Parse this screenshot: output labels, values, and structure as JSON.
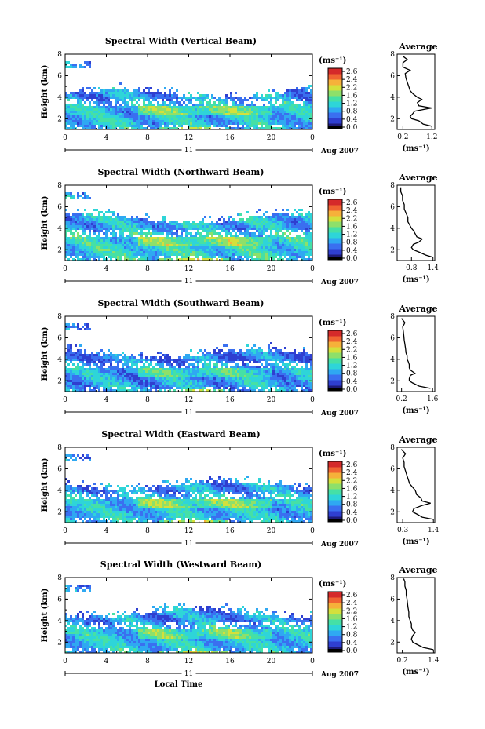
{
  "chart_data": [
    {
      "type": "heatmap",
      "title": "Spectral Width (Vertical Beam)",
      "ylabel": "Height (km)",
      "xticks": [
        "0",
        "4",
        "8",
        "12",
        "16",
        "20",
        "0"
      ],
      "yticks": [
        "2",
        "4",
        "6",
        "8"
      ],
      "xlim": [
        0,
        24
      ],
      "ylim": [
        1,
        8
      ],
      "date_day": "11",
      "date_label": "Aug 2007",
      "colorbar": {
        "unit": "(ms⁻¹)",
        "ticks": [
          "2.6",
          "2.4",
          "2.2",
          "1.6",
          "1.2",
          "0.8",
          "0.4",
          "0.0"
        ]
      },
      "profile": {
        "title": "Average",
        "xlabel": "(ms⁻¹)",
        "xticks": [
          "0.2",
          "1.2"
        ],
        "xlim": [
          0.0,
          1.3
        ],
        "yticks": [
          "2",
          "4",
          "6",
          "8"
        ],
        "height_km": [
          1.3,
          1.5,
          1.8,
          2.0,
          2.2,
          2.5,
          2.7,
          2.9,
          3.0,
          3.2,
          3.5,
          3.8,
          4.0,
          4.3,
          4.6,
          5.0,
          5.4,
          5.8,
          6.2,
          6.5,
          6.8,
          7.2,
          7.5,
          7.8
        ],
        "width": [
          1.2,
          0.9,
          0.75,
          0.5,
          0.45,
          0.55,
          0.6,
          1.0,
          1.2,
          0.75,
          0.7,
          0.85,
          0.7,
          0.55,
          0.45,
          0.4,
          0.35,
          0.3,
          0.28,
          0.45,
          0.2,
          0.2,
          0.35,
          0.2
        ]
      }
    },
    {
      "type": "heatmap",
      "title": "Spectral Width (Northward Beam)",
      "ylabel": "Height (km)",
      "xticks": [
        "0",
        "4",
        "8",
        "12",
        "16",
        "20",
        "0"
      ],
      "yticks": [
        "2",
        "4",
        "6",
        "8"
      ],
      "xlim": [
        0,
        24
      ],
      "ylim": [
        1,
        8
      ],
      "date_day": "11",
      "date_label": "Aug 2007",
      "colorbar": {
        "unit": "(ms⁻¹)",
        "ticks": [
          "2.6",
          "2.4",
          "2.2",
          "1.6",
          "1.2",
          "0.8",
          "0.4",
          "0.0"
        ]
      },
      "profile": {
        "title": "Average",
        "xlabel": "(ms⁻¹)",
        "xticks": [
          "0.8",
          "1.4"
        ],
        "xlim": [
          0.4,
          1.45
        ],
        "yticks": [
          "2",
          "4",
          "6",
          "8"
        ],
        "height_km": [
          1.3,
          1.5,
          1.8,
          2.0,
          2.2,
          2.5,
          2.7,
          3.0,
          3.2,
          3.5,
          3.8,
          4.0,
          4.3,
          4.6,
          5.0,
          5.4,
          5.8,
          6.2,
          6.6,
          7.0,
          7.4,
          7.8
        ],
        "width": [
          1.4,
          1.2,
          1.0,
          0.85,
          0.8,
          0.85,
          1.0,
          1.1,
          0.95,
          0.9,
          0.85,
          0.8,
          0.75,
          0.7,
          0.7,
          0.65,
          0.6,
          0.6,
          0.55,
          0.55,
          0.5,
          0.5
        ]
      }
    },
    {
      "type": "heatmap",
      "title": "Spectral Width (Southward Beam)",
      "ylabel": "Height (km)",
      "xticks": [
        "0",
        "4",
        "8",
        "12",
        "16",
        "20",
        "0"
      ],
      "yticks": [
        "2",
        "4",
        "6",
        "8"
      ],
      "xlim": [
        0,
        24
      ],
      "ylim": [
        1,
        8
      ],
      "date_day": "11",
      "date_label": "Aug 2007",
      "colorbar": {
        "unit": "(ms⁻¹)",
        "ticks": [
          "2.6",
          "2.4",
          "2.2",
          "1.6",
          "1.2",
          "0.8",
          "0.4",
          "0.0"
        ]
      },
      "profile": {
        "title": "Average",
        "xlabel": "(ms⁻¹)",
        "xticks": [
          "0.2",
          "1.6"
        ],
        "xlim": [
          0.0,
          1.7
        ],
        "yticks": [
          "2",
          "4",
          "6",
          "8"
        ],
        "height_km": [
          1.3,
          1.5,
          1.8,
          2.0,
          2.2,
          2.5,
          2.7,
          3.0,
          3.2,
          3.5,
          3.8,
          4.0,
          4.3,
          4.6,
          5.0,
          5.4,
          5.8,
          6.2,
          6.6,
          7.0,
          7.4,
          7.8
        ],
        "width": [
          1.5,
          1.0,
          0.7,
          0.55,
          0.55,
          0.6,
          0.8,
          0.6,
          0.55,
          0.55,
          0.5,
          0.45,
          0.45,
          0.4,
          0.38,
          0.35,
          0.32,
          0.3,
          0.28,
          0.25,
          0.35,
          0.2
        ]
      }
    },
    {
      "type": "heatmap",
      "title": "Spectral Width (Eastward Beam)",
      "ylabel": "Height (km)",
      "xticks": [
        "0",
        "4",
        "8",
        "12",
        "16",
        "20",
        "0"
      ],
      "yticks": [
        "2",
        "4",
        "6",
        "8"
      ],
      "xlim": [
        0,
        24
      ],
      "ylim": [
        1,
        8
      ],
      "date_day": "11",
      "date_label": "Aug 2007",
      "colorbar": {
        "unit": "(ms⁻¹)",
        "ticks": [
          "2.6",
          "2.4",
          "2.2",
          "1.6",
          "1.2",
          "0.8",
          "0.4",
          "0.0"
        ]
      },
      "profile": {
        "title": "Average",
        "xlabel": "(ms⁻¹)",
        "xticks": [
          "0.3",
          "1.4"
        ],
        "xlim": [
          0.1,
          1.45
        ],
        "yticks": [
          "2",
          "4",
          "6",
          "8"
        ],
        "height_km": [
          1.3,
          1.5,
          1.8,
          2.0,
          2.3,
          2.6,
          2.8,
          3.0,
          3.3,
          3.6,
          4.0,
          4.3,
          4.6,
          5.0,
          5.4,
          5.8,
          6.2,
          6.6,
          7.0,
          7.4,
          7.8
        ],
        "width": [
          1.4,
          1.0,
          0.8,
          0.65,
          0.7,
          1.0,
          1.3,
          1.0,
          0.95,
          0.8,
          0.75,
          0.65,
          0.55,
          0.5,
          0.45,
          0.4,
          0.35,
          0.35,
          0.3,
          0.4,
          0.25
        ]
      }
    },
    {
      "type": "heatmap",
      "title": "Spectral Width (Westward Beam)",
      "ylabel": "Height (km)",
      "xticks": [
        "0",
        "4",
        "8",
        "12",
        "16",
        "20",
        "0"
      ],
      "yticks": [
        "2",
        "4",
        "6",
        "8"
      ],
      "xlim": [
        0,
        24
      ],
      "ylim": [
        1,
        8
      ],
      "date_day": "11",
      "date_label": "Aug 2007",
      "xlabel": "Local Time",
      "colorbar": {
        "unit": "(ms⁻¹)",
        "ticks": [
          "2.6",
          "2.4",
          "2.2",
          "1.6",
          "1.2",
          "0.8",
          "0.4",
          "0.0"
        ]
      },
      "profile": {
        "title": "Average",
        "xlabel": "(ms⁻¹)",
        "xticks": [
          "0.2",
          "1.4"
        ],
        "xlim": [
          0.0,
          1.45
        ],
        "yticks": [
          "2",
          "4",
          "6",
          "8"
        ],
        "height_km": [
          1.3,
          1.5,
          1.8,
          2.0,
          2.3,
          2.6,
          2.9,
          3.1,
          3.4,
          3.7,
          4.0,
          4.4,
          4.8,
          5.2,
          5.6,
          6.0,
          6.4,
          6.8,
          7.2,
          7.6,
          7.9
        ],
        "width": [
          1.4,
          1.0,
          0.75,
          0.6,
          0.55,
          0.6,
          0.7,
          0.6,
          0.55,
          0.55,
          0.5,
          0.45,
          0.45,
          0.42,
          0.4,
          0.38,
          0.35,
          0.35,
          0.3,
          0.3,
          0.25
        ]
      }
    }
  ],
  "colors": {
    "scale": [
      "#1e1b7a",
      "#2f3fd0",
      "#3a6ff0",
      "#2fa8f2",
      "#2ed5d8",
      "#45e0a6",
      "#8ee06a",
      "#d4e03c",
      "#f6b13a",
      "#f06432",
      "#d52a2a"
    ],
    "axis": "#000000"
  }
}
